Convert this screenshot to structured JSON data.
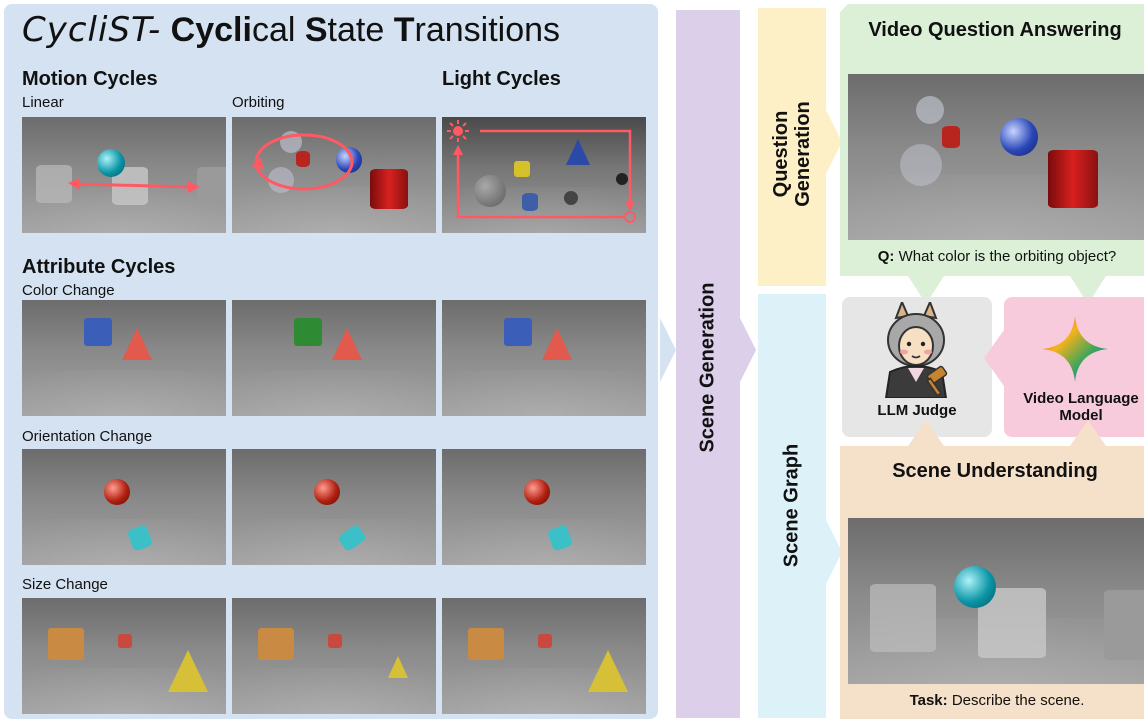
{
  "title": {
    "brand": "CycliST-",
    "w1_bold": "Cycli",
    "w1_rest": "cal ",
    "w2_bold": "S",
    "w2_rest": "tate ",
    "w3_bold": "T",
    "w3_rest": "ransitions"
  },
  "sections": {
    "motion": "Motion Cycles",
    "light": "Light Cycles",
    "attribute": "Attribute Cycles"
  },
  "labels": {
    "linear": "Linear",
    "orbiting": "Orbiting",
    "color": "Color Change",
    "orientation": "Orientation Change",
    "size": "Size Change"
  },
  "columns": {
    "scene_generation": "Scene Generation",
    "question_generation_1": "Question",
    "question_generation_2": "Generation",
    "scene_graph": "Scene Graph"
  },
  "vqa": {
    "title": "Video Question Answering",
    "q_prefix": "Q:",
    "question": "What color is the orbiting object?"
  },
  "judge": {
    "label": "LLM Judge"
  },
  "vlm": {
    "label": "Video Language Model"
  },
  "scene_understanding": {
    "title": "Scene Understanding",
    "task_prefix": "Task:",
    "task": "Describe the scene."
  },
  "colors": {
    "left_panel": "#d4e2f1",
    "scene_gen": "#dccfea",
    "question_gen": "#fdf0c7",
    "scene_graph": "#dcf1f8",
    "vqa_box": "#dcf0d8",
    "judge_box": "#e6e6e6",
    "vlm_box": "#f8cbdc",
    "understanding_box": "#f5e0c9",
    "accent_red": "#ff5a63"
  }
}
